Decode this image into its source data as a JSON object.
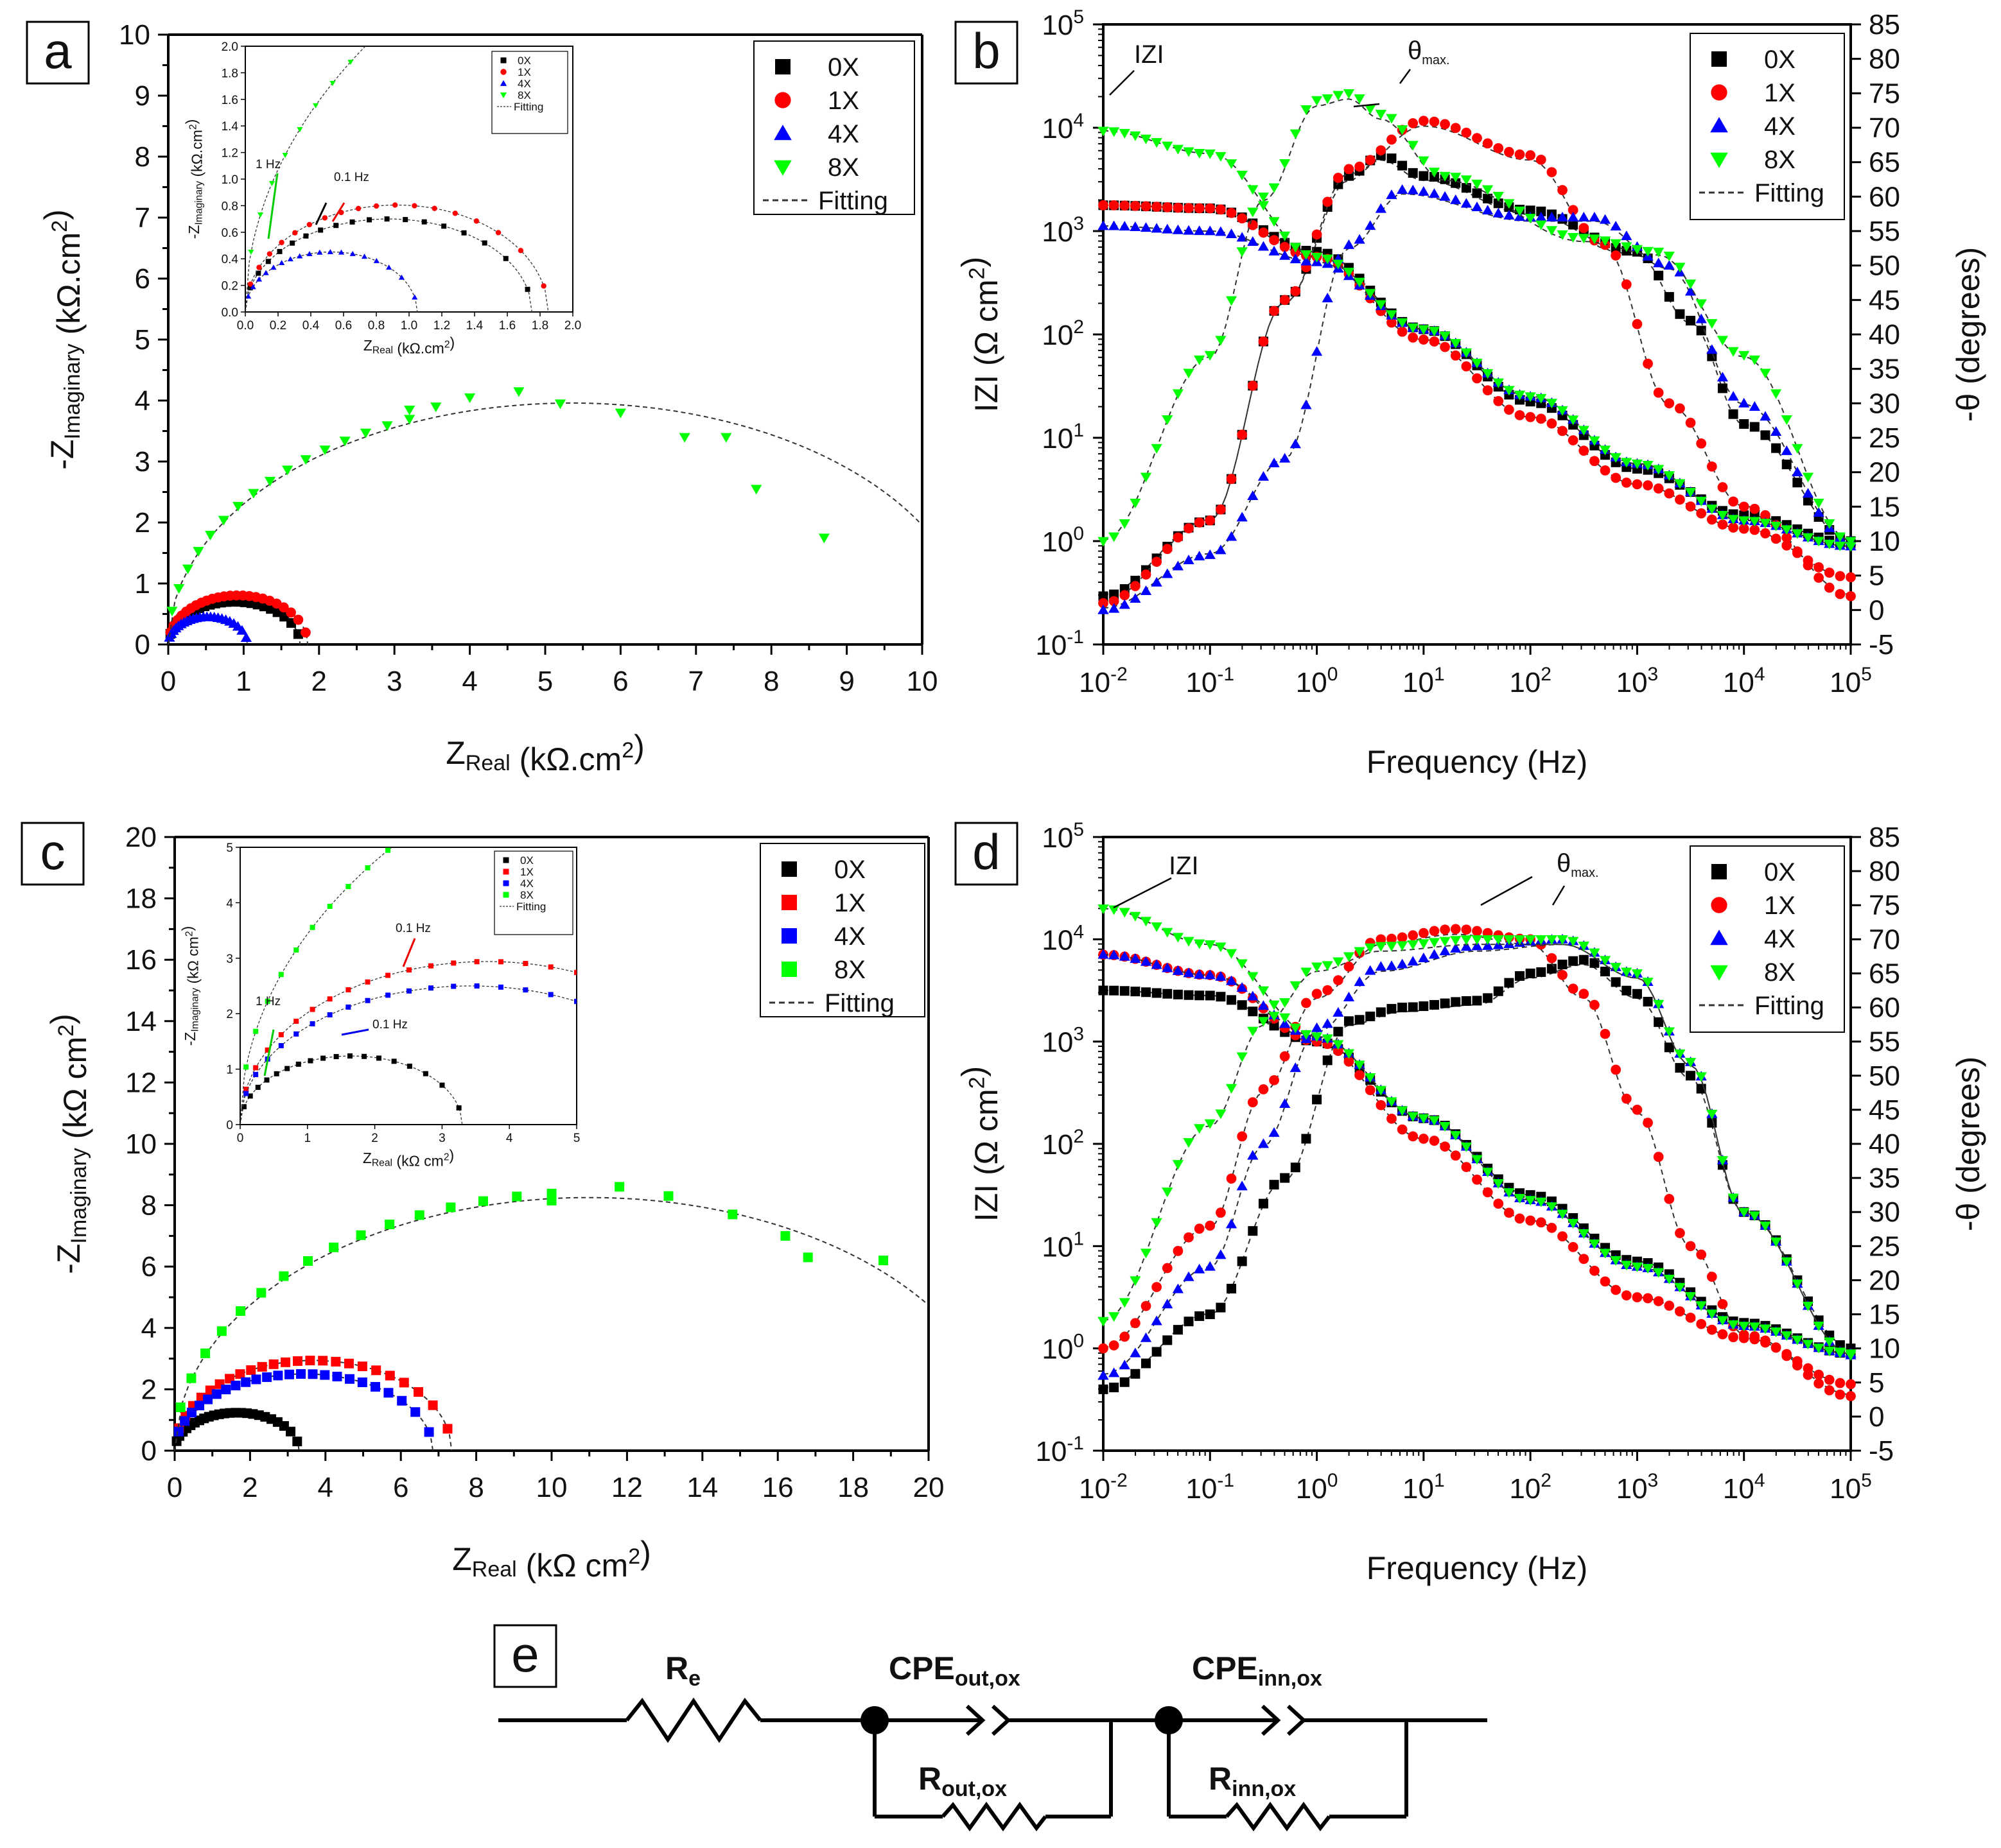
{
  "colors": {
    "0X": "#000000",
    "1X": "#ff0000",
    "4X": "#0000ff",
    "8X": "#00ff00",
    "fit": "#333333"
  },
  "legend": {
    "labels": [
      "0X",
      "1X",
      "4X",
      "8X"
    ],
    "fitting": "Fitting"
  },
  "panel_letters": {
    "a": "a",
    "b": "b",
    "c": "c",
    "d": "d",
    "e": "e"
  },
  "axis_text": {
    "nyq_a_y": {
      "pre": "-Z",
      "sub": "Imaginary",
      "post": " (kΩ.cm",
      "sup": "2",
      "end": ")"
    },
    "nyq_a_x": {
      "pre": "Z",
      "sub": "Real",
      "post": " (kΩ.cm",
      "sup": "2",
      "end": ")"
    },
    "nyq_a_inset_y": {
      "pre": "-Z",
      "sub": "Imaginary",
      "post": " (kΩ.cm",
      "sup": "2",
      "end": ")"
    },
    "nyq_a_inset_x": {
      "pre": "Z",
      "sub": "Real",
      "post": " (kΩ.cm",
      "sup": "2",
      "end": ")"
    },
    "nyq_c_y": {
      "pre": "-Z",
      "sub": "Imaginary",
      "post": " (kΩ cm",
      "sup": "2",
      "end": ")"
    },
    "nyq_c_x": {
      "pre": "Z",
      "sub": "Real",
      "post": " (kΩ cm",
      "sup": "2",
      "end": ")"
    },
    "nyq_c_inset_y": {
      "pre": "-Z",
      "sub": "Imaginary",
      "post": " (kΩ cm",
      "sup": "2",
      "end": ")"
    },
    "nyq_c_inset_x": {
      "pre": "Z",
      "sub": "Real",
      "post": " (kΩ cm",
      "sup": "2",
      "end": ")"
    },
    "bode_y_left": {
      "pre": "IZI (Ω cm",
      "sup": "2",
      "end": ")"
    },
    "bode_y_right": "-θ (degrees)",
    "bode_x": "Frequency (Hz)"
  },
  "annotations": {
    "a_inset_1hz": "1 Hz",
    "a_inset_01hz": "0.1 Hz",
    "c_inset_1hz": "1 Hz",
    "c_inset_01hz_red": "0.1 Hz",
    "c_inset_01hz_blue": "0.1 Hz",
    "izi": "IZI",
    "theta": "θ",
    "theta_sub": "max."
  },
  "circuit": {
    "re": {
      "main": "R",
      "sub": "e"
    },
    "cpe_out": {
      "main": "CPE",
      "sub": "out,ox"
    },
    "cpe_inn": {
      "main": "CPE",
      "sub": "inn,ox"
    },
    "r_out": {
      "main": "R",
      "sub": "out,ox"
    },
    "r_inn": {
      "main": "R",
      "sub": "inn,ox"
    }
  },
  "chart_data": [
    {
      "id": "a",
      "type": "scatter",
      "title": "",
      "xlabel": "ZReal (kΩ.cm2)",
      "ylabel": "-ZImaginary (kΩ.cm2)",
      "xlim": [
        0,
        10
      ],
      "ylim": [
        0,
        10
      ],
      "xticks": [
        0,
        1,
        2,
        3,
        4,
        5,
        6,
        7,
        8,
        9,
        10
      ],
      "yticks": [
        0,
        1,
        2,
        3,
        4,
        5,
        6,
        7,
        8,
        9,
        10
      ],
      "legend_position": "top-right",
      "series": [
        {
          "name": "0X",
          "marker": "square",
          "arc": {
            "x0": 0,
            "x1": 1.75,
            "k": 0.8,
            "p": 1.0
          }
        },
        {
          "name": "1X",
          "marker": "circle",
          "arc": {
            "x0": 0,
            "x1": 1.85,
            "k": 0.87,
            "p": 1.0
          }
        },
        {
          "name": "4X",
          "marker": "triangle-up",
          "arc": {
            "x0": 0,
            "x1": 1.05,
            "k": 0.86,
            "p": 1.0
          }
        },
        {
          "name": "8X",
          "marker": "triangle-down",
          "arc": {
            "x0": 0,
            "x1": 10.7,
            "k": 0.74,
            "p": 1.0
          },
          "points": [
            [
              3.2,
              3.85
            ],
            [
              3.55,
              3.9
            ],
            [
              4.0,
              4.05
            ],
            [
              4.65,
              4.15
            ],
            [
              5.2,
              3.95
            ],
            [
              6.0,
              3.8
            ],
            [
              6.85,
              3.4
            ],
            [
              7.4,
              3.4
            ],
            [
              7.8,
              2.55
            ],
            [
              8.7,
              1.75
            ]
          ]
        }
      ],
      "inset": {
        "xlim": [
          0,
          2
        ],
        "ylim": [
          0,
          2
        ],
        "xticks": [
          0.0,
          0.2,
          0.4,
          0.6,
          0.8,
          1.0,
          1.2,
          1.4,
          1.6,
          1.8,
          2.0
        ],
        "yticks": [
          0.0,
          0.2,
          0.4,
          0.6,
          0.8,
          1.0,
          1.2,
          1.4,
          1.6,
          1.8,
          2.0
        ],
        "xlabel": "ZReal (kΩ.cm2)",
        "ylabel": "-ZImaginary (kΩ.cm2)"
      }
    },
    {
      "id": "c",
      "type": "scatter",
      "title": "",
      "xlabel": "ZReal (kΩ cm2)",
      "ylabel": "-ZImaginary (kΩ cm2)",
      "xlim": [
        0,
        20
      ],
      "ylim": [
        0,
        20
      ],
      "xticks": [
        0,
        2,
        4,
        6,
        8,
        10,
        12,
        14,
        16,
        18,
        20
      ],
      "yticks": [
        0,
        2,
        4,
        6,
        8,
        10,
        12,
        14,
        16,
        18,
        20
      ],
      "legend_position": "top-right",
      "series": [
        {
          "name": "0X",
          "marker": "square",
          "arc": {
            "x0": 0,
            "x1": 3.3,
            "k": 0.75,
            "p": 1.0
          }
        },
        {
          "name": "1X",
          "marker": "square",
          "arc": {
            "x0": 0,
            "x1": 7.35,
            "k": 0.8,
            "p": 1.0
          }
        },
        {
          "name": "4X",
          "marker": "square",
          "arc": {
            "x0": 0,
            "x1": 6.85,
            "k": 0.73,
            "p": 1.0
          }
        },
        {
          "name": "8X",
          "marker": "square",
          "arc": {
            "x0": 0,
            "x1": 22.0,
            "k": 0.75,
            "p": 1.0
          },
          "points": [
            [
              10.0,
              8.15
            ],
            [
              11.8,
              8.6
            ],
            [
              13.1,
              8.3
            ],
            [
              14.8,
              7.7
            ],
            [
              16.2,
              7.0
            ],
            [
              16.8,
              6.3
            ],
            [
              18.8,
              6.2
            ]
          ]
        }
      ],
      "inset": {
        "xlim": [
          0,
          5
        ],
        "ylim": [
          0,
          5
        ],
        "xticks": [
          0,
          1,
          2,
          3,
          4,
          5
        ],
        "yticks": [
          0,
          1,
          2,
          3,
          4,
          5
        ],
        "xlabel": "ZReal (kΩ cm2)",
        "ylabel": "-ZImaginary (kΩ cm2)"
      }
    },
    {
      "id": "b",
      "type": "scatter",
      "title": "",
      "xlabel": "Frequency (Hz)",
      "ylabel": "IZI (Ω cm2)",
      "ylabel_right": "-θ (degrees)",
      "xlim_log10": [
        -2,
        5
      ],
      "ylim_log10": [
        -1,
        5
      ],
      "y2lim": [
        -5,
        85
      ],
      "xticks_exp": [
        -2,
        -1,
        0,
        1,
        2,
        3,
        4,
        5
      ],
      "yticks_exp": [
        -1,
        0,
        1,
        2,
        3,
        4,
        5
      ],
      "y2ticks": [
        -5,
        0,
        5,
        10,
        15,
        20,
        25,
        30,
        35,
        40,
        45,
        50,
        55,
        60,
        65,
        70,
        75,
        80,
        85
      ],
      "legend_position": "top-right",
      "magnitude_log10": {
        "0X": [
          [
            -2,
            3.25
          ],
          [
            -1,
            3.22
          ],
          [
            0,
            2.8
          ],
          [
            1,
            2.05
          ],
          [
            2,
            1.35
          ],
          [
            3,
            0.7
          ],
          [
            4,
            0.25
          ],
          [
            5,
            -0.02
          ]
        ],
        "1X": [
          [
            -2,
            3.25
          ],
          [
            -1,
            3.22
          ],
          [
            0,
            2.75
          ],
          [
            1,
            1.95
          ],
          [
            2,
            1.2
          ],
          [
            3,
            0.55
          ],
          [
            4,
            0.12
          ],
          [
            5,
            -0.35
          ]
        ],
        "4X": [
          [
            -2,
            3.05
          ],
          [
            -1,
            3.0
          ],
          [
            0,
            2.7
          ],
          [
            1,
            2.05
          ],
          [
            2,
            1.4
          ],
          [
            3,
            0.75
          ],
          [
            4,
            0.2
          ],
          [
            5,
            -0.05
          ]
        ],
        "8X": [
          [
            -2,
            3.97
          ],
          [
            -1,
            3.75
          ],
          [
            0,
            2.75
          ],
          [
            1,
            2.05
          ],
          [
            2,
            1.4
          ],
          [
            3,
            0.75
          ],
          [
            4,
            0.2
          ],
          [
            5,
            -0.05
          ]
        ]
      },
      "phase_deg": {
        "0X": [
          [
            -2,
            2
          ],
          [
            -1,
            13
          ],
          [
            -0.3,
            45
          ],
          [
            0.3,
            63
          ],
          [
            0.6,
            66
          ],
          [
            1,
            63
          ],
          [
            2,
            58
          ],
          [
            3,
            52
          ],
          [
            3.5,
            42
          ],
          [
            4,
            27
          ],
          [
            5,
            10
          ]
        ],
        "1X": [
          [
            -2,
            1
          ],
          [
            -1,
            13
          ],
          [
            -0.3,
            45
          ],
          [
            0.3,
            64
          ],
          [
            1,
            71
          ],
          [
            2,
            66
          ],
          [
            2.7,
            53
          ],
          [
            3.3,
            30
          ],
          [
            4,
            15
          ],
          [
            5,
            2
          ]
        ],
        "4X": [
          [
            -2,
            0
          ],
          [
            -1,
            8
          ],
          [
            -0.3,
            22
          ],
          [
            0.3,
            53
          ],
          [
            0.8,
            61
          ],
          [
            2,
            57
          ],
          [
            2.6,
            57
          ],
          [
            3.3,
            50
          ],
          [
            4,
            30
          ],
          [
            5,
            10
          ]
        ],
        "8X": [
          [
            -2,
            10
          ],
          [
            -1,
            37
          ],
          [
            -0.5,
            60
          ],
          [
            0,
            74
          ],
          [
            0.3,
            75
          ],
          [
            0.6,
            72
          ],
          [
            1.2,
            63
          ],
          [
            2.5,
            54
          ],
          [
            3.2,
            52
          ],
          [
            4,
            37
          ],
          [
            5,
            10
          ]
        ]
      }
    },
    {
      "id": "d",
      "type": "scatter",
      "title": "",
      "xlabel": "Frequency (Hz)",
      "ylabel": "IZI (Ω cm2)",
      "ylabel_right": "-θ (degrees)",
      "xlim_log10": [
        -2,
        5
      ],
      "ylim_log10": [
        -1,
        5
      ],
      "y2lim": [
        -5,
        85
      ],
      "xticks_exp": [
        -2,
        -1,
        0,
        1,
        2,
        3,
        4,
        5
      ],
      "yticks_exp": [
        -1,
        0,
        1,
        2,
        3,
        4,
        5
      ],
      "y2ticks": [
        -5,
        0,
        5,
        10,
        15,
        20,
        25,
        30,
        35,
        40,
        45,
        50,
        55,
        60,
        65,
        70,
        75,
        80,
        85
      ],
      "legend_position": "top-right",
      "magnitude_log10": {
        "0X": [
          [
            -2,
            3.5
          ],
          [
            -1,
            3.45
          ],
          [
            0,
            3.0
          ],
          [
            1,
            2.25
          ],
          [
            2,
            1.5
          ],
          [
            3,
            0.85
          ],
          [
            4,
            0.25
          ],
          [
            5,
            -0.05
          ]
        ],
        "1X": [
          [
            -2,
            3.85
          ],
          [
            -1,
            3.65
          ],
          [
            0,
            3.0
          ],
          [
            1,
            2.05
          ],
          [
            2,
            1.25
          ],
          [
            3,
            0.5
          ],
          [
            4,
            0.1
          ],
          [
            5,
            -0.35
          ]
        ],
        "4X": [
          [
            -2,
            3.85
          ],
          [
            -1,
            3.65
          ],
          [
            0,
            3.05
          ],
          [
            1,
            2.25
          ],
          [
            2,
            1.45
          ],
          [
            3,
            0.8
          ],
          [
            4,
            0.22
          ],
          [
            5,
            -0.05
          ]
        ],
        "8X": [
          [
            -2,
            4.3
          ],
          [
            -1,
            3.95
          ],
          [
            0,
            3.05
          ],
          [
            1,
            2.25
          ],
          [
            2,
            1.45
          ],
          [
            3,
            0.8
          ],
          [
            4,
            0.22
          ],
          [
            5,
            -0.05
          ]
        ]
      },
      "phase_deg": {
        "0X": [
          [
            -2,
            4
          ],
          [
            -1,
            15
          ],
          [
            -0.3,
            35
          ],
          [
            0.3,
            58
          ],
          [
            0.8,
            60
          ],
          [
            1.5,
            61
          ],
          [
            2,
            65
          ],
          [
            2.5,
            67
          ],
          [
            3,
            62
          ],
          [
            3.5,
            50
          ],
          [
            4,
            30
          ],
          [
            5,
            10
          ]
        ],
        "1X": [
          [
            -2,
            10
          ],
          [
            -1,
            28
          ],
          [
            -0.5,
            48
          ],
          [
            0,
            62
          ],
          [
            0.6,
            70
          ],
          [
            1.3,
            71.5
          ],
          [
            2,
            70
          ],
          [
            2.5,
            62
          ],
          [
            3,
            45
          ],
          [
            3.5,
            25
          ],
          [
            4,
            12
          ],
          [
            5,
            3
          ]
        ],
        "4X": [
          [
            -2,
            6
          ],
          [
            -1,
            22
          ],
          [
            -0.5,
            40
          ],
          [
            0,
            57
          ],
          [
            0.6,
            66
          ],
          [
            1.5,
            69
          ],
          [
            2.3,
            70
          ],
          [
            3,
            65
          ],
          [
            3.5,
            52
          ],
          [
            4,
            30
          ],
          [
            5,
            9
          ]
        ],
        "8X": [
          [
            -2,
            14
          ],
          [
            -1,
            43
          ],
          [
            -0.5,
            58
          ],
          [
            0,
            66
          ],
          [
            0.6,
            69
          ],
          [
            1.5,
            70
          ],
          [
            2.3,
            70
          ],
          [
            3,
            65
          ],
          [
            3.5,
            52
          ],
          [
            4,
            30
          ],
          [
            5,
            9
          ]
        ]
      }
    }
  ]
}
